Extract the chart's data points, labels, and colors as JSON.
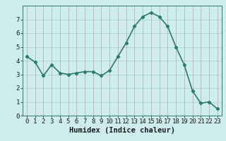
{
  "x": [
    0,
    1,
    2,
    3,
    4,
    5,
    6,
    7,
    8,
    9,
    10,
    11,
    12,
    13,
    14,
    15,
    16,
    17,
    18,
    19,
    20,
    21,
    22,
    23
  ],
  "y": [
    4.3,
    3.9,
    2.9,
    3.7,
    3.1,
    3.0,
    3.1,
    3.2,
    3.2,
    2.9,
    3.3,
    4.3,
    5.3,
    6.5,
    7.2,
    7.5,
    7.2,
    6.5,
    5.0,
    3.7,
    1.8,
    0.9,
    1.0,
    0.5
  ],
  "line_color": "#2d7a6e",
  "marker": "D",
  "marker_size": 2.2,
  "line_width": 1.2,
  "bg_color": "#ceeeed",
  "grid_color_x": "#c9a0a0",
  "grid_color_y": "#aacfcf",
  "xlabel": "Humidex (Indice chaleur)",
  "xlabel_fontsize": 7.5,
  "ylim": [
    0,
    8
  ],
  "xlim": [
    -0.5,
    23.5
  ],
  "yticks": [
    0,
    1,
    2,
    3,
    4,
    5,
    6,
    7
  ],
  "xticks": [
    0,
    1,
    2,
    3,
    4,
    5,
    6,
    7,
    8,
    9,
    10,
    11,
    12,
    13,
    14,
    15,
    16,
    17,
    18,
    19,
    20,
    21,
    22,
    23
  ],
  "tick_fontsize": 6.5,
  "spine_color": "#2d7a6e"
}
